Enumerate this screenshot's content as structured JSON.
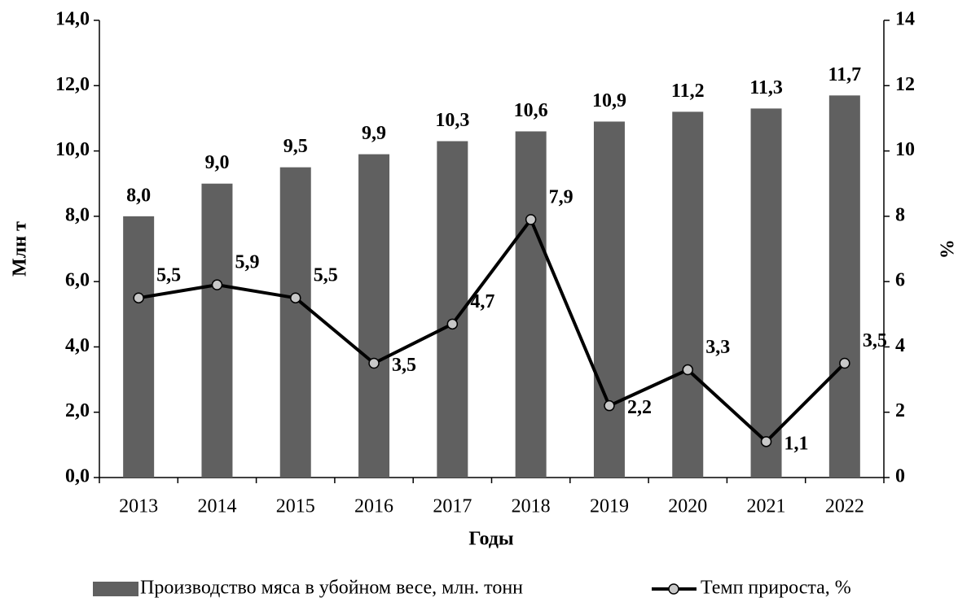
{
  "chart_data": {
    "type": "bar",
    "categories": [
      "2013",
      "2014",
      "2015",
      "2016",
      "2017",
      "2018",
      "2019",
      "2020",
      "2021",
      "2022"
    ],
    "x_label": "Годы",
    "y_label": "Млн т",
    "y2_label": "%",
    "ylim": [
      0,
      14
    ],
    "yticks": [
      {
        "value": 0,
        "label": "0,0"
      },
      {
        "value": 2,
        "label": "2,0"
      },
      {
        "value": 4,
        "label": "4,0"
      },
      {
        "value": 6,
        "label": "6,0"
      },
      {
        "value": 8,
        "label": "8,0"
      },
      {
        "value": 10,
        "label": "10,0"
      },
      {
        "value": 12,
        "label": "12,0"
      },
      {
        "value": 14,
        "label": "14,0"
      }
    ],
    "y2lim": [
      0,
      14
    ],
    "y2ticks": [
      0,
      2,
      4,
      6,
      8,
      10,
      12,
      14
    ],
    "legend": "bottom",
    "series": [
      {
        "name": "Производство мяса в убойном весе, млн. тонн",
        "type": "bar",
        "color": "#606060",
        "values": [
          8.0,
          9.0,
          9.5,
          9.9,
          10.3,
          10.6,
          10.9,
          11.2,
          11.3,
          11.7
        ],
        "value_labels": [
          "8,0",
          "9,0",
          "9,5",
          "9,9",
          "10,3",
          "10,6",
          "10,9",
          "11,2",
          "11,3",
          "11,7"
        ]
      },
      {
        "name": "Темп прироста, %",
        "type": "line",
        "axis": "y2",
        "color": "#000000",
        "marker_color": "#c8c8c8",
        "values": [
          5.5,
          5.9,
          5.5,
          3.5,
          4.7,
          7.9,
          2.2,
          3.3,
          1.1,
          3.5
        ],
        "value_labels": [
          "5,5",
          "5,9",
          "5,5",
          "3,5",
          "4,7",
          "7,9",
          "2,2",
          "3,3",
          "1,1",
          "3,5"
        ]
      }
    ]
  }
}
